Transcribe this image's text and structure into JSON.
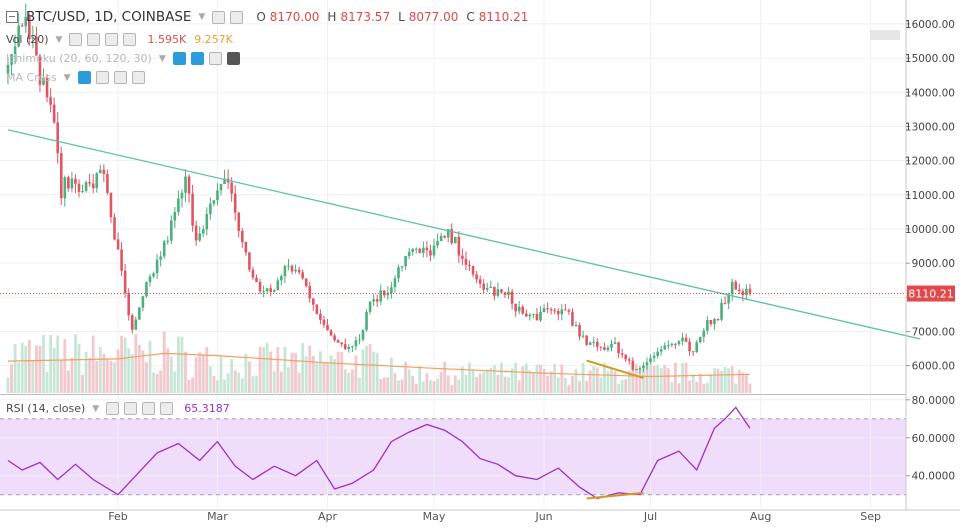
{
  "header": {
    "symbol": "BTC/USD, 1D, COINBASE",
    "o_label": "O",
    "o_value": "8170.00",
    "h_label": "H",
    "h_value": "8173.57",
    "l_label": "L",
    "l_value": "8077.00",
    "c_label": "C",
    "c_value": "8110.21"
  },
  "indicators": {
    "vol_name": "Vol (20)",
    "vol_v1": "1.595K",
    "vol_v2": "9.257K",
    "ichimoku_name": "Ichimoku (20, 60, 120, 30)",
    "ma_cross_name": "MA Cross"
  },
  "rsi": {
    "name": "RSI (14, close)",
    "value": "65.3187"
  },
  "price_label": "8110.21",
  "colors": {
    "up": "#4caf7d",
    "down": "#e05563",
    "trendline": "#5cc2a6",
    "rsi_line": "#9b30c8",
    "rsi_band": "#f0dcfb",
    "divergence": "#d29a26",
    "vol_ma": "#f0a060",
    "price_line": "#e04a4a"
  },
  "chart_data": [
    {
      "type": "candlestick",
      "title": "BTC/USD, 1D, COINBASE",
      "y_ticks": [
        "6000.00",
        "7000.00",
        "8000.00",
        "9000.00",
        "10000.00",
        "11000.00",
        "12000.00",
        "13000.00",
        "14000.00",
        "15000.00",
        "16000.00"
      ],
      "x_ticks": [
        "Feb",
        "Mar",
        "Apr",
        "May",
        "Jun",
        "Jul",
        "Aug",
        "Sep"
      ],
      "ylim": [
        5200,
        16700
      ],
      "grid": true,
      "last_price": 8110.21,
      "trendline": {
        "from": {
          "date": "2018-01-01",
          "price": 12900
        },
        "to": {
          "date": "2018-09-15",
          "price": 6780
        }
      },
      "divergence_line": {
        "from": {
          "date": "2018-06-13",
          "price": 6150
        },
        "to": {
          "date": "2018-06-29",
          "price": 5640
        }
      },
      "price_path": [
        [
          "2018-01-01",
          14900
        ],
        [
          "2018-01-06",
          16500
        ],
        [
          "2018-01-09",
          14800
        ],
        [
          "2018-01-13",
          13700
        ],
        [
          "2018-01-16",
          11200
        ],
        [
          "2018-01-19",
          11400
        ],
        [
          "2018-01-24",
          11200
        ],
        [
          "2018-01-28",
          11700
        ],
        [
          "2018-02-01",
          9200
        ],
        [
          "2018-02-05",
          6900
        ],
        [
          "2018-02-09",
          8300
        ],
        [
          "2018-02-14",
          9500
        ],
        [
          "2018-02-16",
          10100
        ],
        [
          "2018-02-20",
          11400
        ],
        [
          "2018-02-23",
          9800
        ],
        [
          "2018-02-27",
          10600
        ],
        [
          "2018-03-04",
          11500
        ],
        [
          "2018-03-07",
          10000
        ],
        [
          "2018-03-10",
          8800
        ],
        [
          "2018-03-14",
          8100
        ],
        [
          "2018-03-17",
          8300
        ],
        [
          "2018-03-21",
          8900
        ],
        [
          "2018-03-24",
          8700
        ],
        [
          "2018-03-28",
          7900
        ],
        [
          "2018-04-01",
          6900
        ],
        [
          "2018-04-06",
          6600
        ],
        [
          "2018-04-10",
          6800
        ],
        [
          "2018-04-13",
          7900
        ],
        [
          "2018-04-18",
          8200
        ],
        [
          "2018-04-21",
          8900
        ],
        [
          "2018-04-24",
          9300
        ],
        [
          "2018-04-29",
          9300
        ],
        [
          "2018-05-05",
          9800
        ],
        [
          "2018-05-09",
          9300
        ],
        [
          "2018-05-12",
          8500
        ],
        [
          "2018-05-17",
          8200
        ],
        [
          "2018-05-22",
          8000
        ],
        [
          "2018-05-27",
          7400
        ],
        [
          "2018-05-31",
          7500
        ],
        [
          "2018-06-05",
          7600
        ],
        [
          "2018-06-08",
          7600
        ],
        [
          "2018-06-11",
          6800
        ],
        [
          "2018-06-14",
          6600
        ],
        [
          "2018-06-17",
          6500
        ],
        [
          "2018-06-21",
          6700
        ],
        [
          "2018-06-24",
          6100
        ],
        [
          "2018-06-28",
          5900
        ],
        [
          "2018-07-02",
          6400
        ],
        [
          "2018-07-06",
          6600
        ],
        [
          "2018-07-10",
          6700
        ],
        [
          "2018-07-13",
          6300
        ],
        [
          "2018-07-17",
          7300
        ],
        [
          "2018-07-20",
          7500
        ],
        [
          "2018-07-24",
          8400
        ],
        [
          "2018-07-27",
          8200
        ],
        [
          "2018-07-29",
          8110
        ]
      ],
      "volume_max": 9257,
      "volume_ma": [
        [
          "2018-01-01",
          0.58
        ],
        [
          "2018-02-01",
          0.62
        ],
        [
          "2018-02-14",
          0.72
        ],
        [
          "2018-03-01",
          0.68
        ],
        [
          "2018-04-01",
          0.55
        ],
        [
          "2018-05-01",
          0.45
        ],
        [
          "2018-06-01",
          0.36
        ],
        [
          "2018-07-01",
          0.3
        ],
        [
          "2018-07-29",
          0.34
        ]
      ]
    },
    {
      "type": "line",
      "title": "RSI (14, close)",
      "y_ticks": [
        "40.0000",
        "60.0000",
        "80.0000"
      ],
      "ylim": [
        23,
        82
      ],
      "band": [
        30,
        70
      ],
      "last_value": 65.3187,
      "x": [
        "2018-01-01",
        "2018-01-05",
        "2018-01-10",
        "2018-01-15",
        "2018-01-20",
        "2018-01-25",
        "2018-02-01",
        "2018-02-06",
        "2018-02-12",
        "2018-02-18",
        "2018-02-24",
        "2018-03-01",
        "2018-03-06",
        "2018-03-11",
        "2018-03-17",
        "2018-03-23",
        "2018-03-29",
        "2018-04-03",
        "2018-04-08",
        "2018-04-14",
        "2018-04-19",
        "2018-04-24",
        "2018-04-29",
        "2018-05-04",
        "2018-05-09",
        "2018-05-14",
        "2018-05-19",
        "2018-05-24",
        "2018-05-30",
        "2018-06-05",
        "2018-06-11",
        "2018-06-16",
        "2018-06-22",
        "2018-06-28",
        "2018-07-03",
        "2018-07-09",
        "2018-07-14",
        "2018-07-19",
        "2018-07-22",
        "2018-07-25",
        "2018-07-29"
      ],
      "values": [
        48,
        43,
        47,
        38,
        46,
        38,
        30,
        40,
        52,
        57,
        48,
        58,
        45,
        38,
        45,
        40,
        48,
        33,
        36,
        43,
        58,
        63,
        67,
        64,
        58,
        49,
        46,
        40,
        38,
        44,
        34,
        28,
        31,
        30,
        48,
        53,
        43,
        65,
        70,
        76,
        65
      ]
    }
  ]
}
